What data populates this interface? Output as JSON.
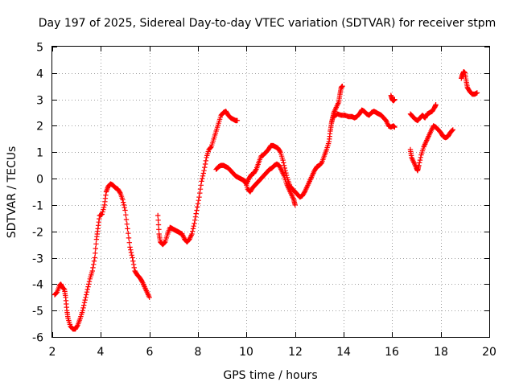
{
  "chart_data": {
    "type": "scatter",
    "title": "Day 197 of 2025, Sidereal Day-to-day VTEC variation (SDTVAR) for receiver stpm",
    "xlabel": "GPS time / hours",
    "ylabel": "SDTVAR / TECUs",
    "xlim": [
      2,
      20
    ],
    "ylim": [
      -6,
      5
    ],
    "xticks": [
      "2",
      "4",
      "6",
      "8",
      "10",
      "12",
      "14",
      "16",
      "18",
      "20"
    ],
    "yticks": [
      "-6",
      "-5",
      "-4",
      "-3",
      "-2",
      "-1",
      "0",
      "1",
      "2",
      "3",
      "4",
      "5"
    ],
    "grid": true,
    "marker": "plus",
    "color": "#ff0000",
    "segments": [
      [
        [
          2.1,
          -4.4
        ],
        [
          2.2,
          -4.3
        ],
        [
          2.3,
          -4.05
        ],
        [
          2.35,
          -4.0
        ],
        [
          2.4,
          -4.1
        ],
        [
          2.5,
          -4.2
        ],
        [
          2.55,
          -4.5
        ],
        [
          2.6,
          -5.0
        ],
        [
          2.65,
          -5.3
        ],
        [
          2.75,
          -5.6
        ],
        [
          2.85,
          -5.7
        ],
        [
          2.95,
          -5.7
        ],
        [
          3.05,
          -5.55
        ],
        [
          3.15,
          -5.3
        ],
        [
          3.25,
          -5.0
        ],
        [
          3.35,
          -4.6
        ],
        [
          3.45,
          -4.2
        ],
        [
          3.55,
          -3.8
        ],
        [
          3.65,
          -3.5
        ],
        [
          3.75,
          -3.0
        ],
        [
          3.82,
          -2.3
        ],
        [
          3.88,
          -1.9
        ],
        [
          3.95,
          -1.4
        ],
        [
          4.05,
          -1.35
        ],
        [
          4.15,
          -1.0
        ],
        [
          4.22,
          -0.5
        ],
        [
          4.3,
          -0.3
        ],
        [
          4.4,
          -0.2
        ],
        [
          4.5,
          -0.25
        ],
        [
          4.6,
          -0.35
        ],
        [
          4.7,
          -0.4
        ],
        [
          4.8,
          -0.55
        ],
        [
          4.9,
          -0.8
        ],
        [
          5.0,
          -1.2
        ],
        [
          5.1,
          -1.9
        ],
        [
          5.2,
          -2.6
        ],
        [
          5.3,
          -3.0
        ],
        [
          5.4,
          -3.5
        ],
        [
          5.5,
          -3.65
        ],
        [
          5.6,
          -3.75
        ],
        [
          5.7,
          -3.9
        ],
        [
          5.8,
          -4.1
        ],
        [
          5.9,
          -4.3
        ],
        [
          6.0,
          -4.5
        ]
      ],
      [
        [
          6.35,
          -1.4
        ],
        [
          6.4,
          -2.1
        ],
        [
          6.45,
          -2.4
        ],
        [
          6.55,
          -2.5
        ],
        [
          6.65,
          -2.4
        ],
        [
          6.75,
          -2.1
        ],
        [
          6.85,
          -1.85
        ],
        [
          6.95,
          -1.9
        ],
        [
          7.05,
          -1.95
        ],
        [
          7.15,
          -2.0
        ],
        [
          7.25,
          -2.05
        ],
        [
          7.35,
          -2.1
        ],
        [
          7.45,
          -2.3
        ],
        [
          7.55,
          -2.4
        ],
        [
          7.65,
          -2.3
        ],
        [
          7.75,
          -2.1
        ],
        [
          7.85,
          -1.7
        ],
        [
          7.95,
          -1.2
        ],
        [
          8.05,
          -0.7
        ],
        [
          8.15,
          -0.1
        ],
        [
          8.25,
          0.3
        ],
        [
          8.35,
          0.8
        ],
        [
          8.45,
          1.1
        ],
        [
          8.55,
          1.2
        ],
        [
          8.65,
          1.5
        ],
        [
          8.75,
          1.8
        ],
        [
          8.85,
          2.1
        ],
        [
          8.95,
          2.4
        ],
        [
          9.05,
          2.5
        ],
        [
          9.15,
          2.55
        ],
        [
          9.25,
          2.4
        ],
        [
          9.35,
          2.3
        ],
        [
          9.45,
          2.25
        ],
        [
          9.55,
          2.2
        ],
        [
          9.62,
          2.2
        ]
      ],
      [
        [
          8.75,
          0.35
        ],
        [
          8.85,
          0.45
        ],
        [
          8.95,
          0.5
        ],
        [
          9.05,
          0.5
        ],
        [
          9.15,
          0.45
        ],
        [
          9.25,
          0.4
        ],
        [
          9.35,
          0.3
        ],
        [
          9.45,
          0.2
        ],
        [
          9.55,
          0.1
        ],
        [
          9.65,
          0.05
        ],
        [
          9.75,
          0.0
        ],
        [
          9.85,
          -0.05
        ],
        [
          9.95,
          -0.1
        ],
        [
          10.05,
          -0.4
        ],
        [
          10.15,
          -0.5
        ],
        [
          10.25,
          -0.35
        ],
        [
          10.35,
          -0.25
        ],
        [
          10.45,
          -0.15
        ],
        [
          10.55,
          -0.05
        ],
        [
          10.65,
          0.05
        ],
        [
          10.75,
          0.15
        ],
        [
          10.85,
          0.25
        ],
        [
          10.95,
          0.35
        ],
        [
          11.05,
          0.4
        ],
        [
          11.15,
          0.5
        ],
        [
          11.25,
          0.55
        ],
        [
          11.35,
          0.5
        ],
        [
          11.45,
          0.3
        ],
        [
          11.55,
          0.1
        ],
        [
          11.65,
          -0.2
        ],
        [
          11.75,
          -0.4
        ],
        [
          11.85,
          -0.6
        ],
        [
          11.95,
          -0.8
        ],
        [
          12.0,
          -1.0
        ]
      ],
      [
        [
          9.9,
          -0.1
        ],
        [
          10.0,
          -0.2
        ],
        [
          10.1,
          0.0
        ],
        [
          10.2,
          0.15
        ],
        [
          10.3,
          0.2
        ],
        [
          10.4,
          0.35
        ],
        [
          10.5,
          0.6
        ],
        [
          10.6,
          0.85
        ],
        [
          10.7,
          0.9
        ],
        [
          10.8,
          1.0
        ],
        [
          10.9,
          1.1
        ],
        [
          11.0,
          1.25
        ],
        [
          11.1,
          1.25
        ],
        [
          11.2,
          1.2
        ],
        [
          11.3,
          1.15
        ],
        [
          11.4,
          1.0
        ],
        [
          11.5,
          0.7
        ],
        [
          11.6,
          0.3
        ],
        [
          11.7,
          -0.05
        ],
        [
          11.8,
          -0.3
        ],
        [
          11.9,
          -0.4
        ],
        [
          12.0,
          -0.5
        ],
        [
          12.1,
          -0.6
        ],
        [
          12.2,
          -0.7
        ],
        [
          12.3,
          -0.65
        ],
        [
          12.4,
          -0.5
        ],
        [
          12.5,
          -0.3
        ],
        [
          12.6,
          -0.1
        ],
        [
          12.7,
          0.1
        ],
        [
          12.8,
          0.3
        ],
        [
          12.9,
          0.45
        ],
        [
          13.0,
          0.5
        ],
        [
          13.1,
          0.6
        ],
        [
          13.2,
          0.85
        ],
        [
          13.3,
          1.1
        ],
        [
          13.4,
          1.4
        ],
        [
          13.45,
          1.8
        ],
        [
          13.5,
          2.1
        ],
        [
          13.55,
          2.3
        ],
        [
          13.6,
          2.5
        ],
        [
          13.7,
          2.7
        ],
        [
          13.8,
          2.9
        ],
        [
          13.85,
          3.2
        ],
        [
          13.9,
          3.45
        ],
        [
          13.95,
          3.5
        ]
      ],
      [
        [
          13.6,
          2.35
        ],
        [
          13.75,
          2.45
        ],
        [
          13.9,
          2.4
        ],
        [
          14.05,
          2.4
        ],
        [
          14.2,
          2.35
        ],
        [
          14.35,
          2.35
        ],
        [
          14.45,
          2.3
        ],
        [
          14.55,
          2.35
        ],
        [
          14.65,
          2.45
        ],
        [
          14.75,
          2.6
        ],
        [
          14.85,
          2.55
        ],
        [
          14.95,
          2.45
        ],
        [
          15.05,
          2.4
        ],
        [
          15.15,
          2.5
        ],
        [
          15.25,
          2.55
        ],
        [
          15.35,
          2.5
        ],
        [
          15.45,
          2.45
        ],
        [
          15.55,
          2.4
        ],
        [
          15.65,
          2.3
        ],
        [
          15.75,
          2.2
        ],
        [
          15.85,
          2.0
        ],
        [
          15.95,
          1.95
        ],
        [
          16.05,
          2.0
        ],
        [
          16.1,
          1.95
        ]
      ],
      [
        [
          15.95,
          3.15
        ],
        [
          16.0,
          3.0
        ],
        [
          16.05,
          2.95
        ],
        [
          16.1,
          3.0
        ]
      ],
      [
        [
          16.75,
          1.1
        ],
        [
          16.8,
          0.8
        ],
        [
          16.9,
          0.6
        ],
        [
          17.0,
          0.4
        ],
        [
          17.05,
          0.3
        ],
        [
          17.1,
          0.5
        ],
        [
          17.2,
          0.9
        ],
        [
          17.3,
          1.2
        ],
        [
          17.4,
          1.4
        ],
        [
          17.5,
          1.6
        ],
        [
          17.6,
          1.8
        ],
        [
          17.7,
          2.0
        ],
        [
          17.8,
          1.95
        ],
        [
          17.9,
          1.85
        ],
        [
          18.0,
          1.75
        ],
        [
          18.1,
          1.6
        ],
        [
          18.2,
          1.55
        ],
        [
          18.3,
          1.6
        ],
        [
          18.4,
          1.75
        ],
        [
          18.5,
          1.85
        ]
      ],
      [
        [
          16.75,
          2.45
        ],
        [
          16.85,
          2.35
        ],
        [
          16.95,
          2.25
        ],
        [
          17.05,
          2.2
        ],
        [
          17.15,
          2.3
        ],
        [
          17.25,
          2.4
        ],
        [
          17.35,
          2.3
        ],
        [
          17.45,
          2.45
        ],
        [
          17.55,
          2.5
        ],
        [
          17.65,
          2.55
        ],
        [
          17.75,
          2.7
        ],
        [
          17.8,
          2.8
        ]
      ],
      [
        [
          18.85,
          3.8
        ],
        [
          18.9,
          3.95
        ],
        [
          18.95,
          4.05
        ],
        [
          19.0,
          4.0
        ],
        [
          19.05,
          3.7
        ],
        [
          19.1,
          3.45
        ],
        [
          19.2,
          3.3
        ],
        [
          19.3,
          3.2
        ],
        [
          19.4,
          3.2
        ],
        [
          19.5,
          3.25
        ]
      ]
    ]
  }
}
